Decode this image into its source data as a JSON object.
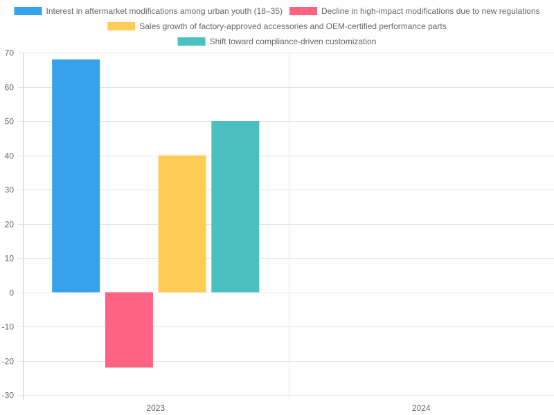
{
  "chart_data": {
    "type": "bar",
    "categories": [
      "2023",
      "2024"
    ],
    "series": [
      {
        "name": "Interest in aftermarket modifications among urban youth (18–35)",
        "values": [
          68,
          null
        ],
        "color": "#36a2eb"
      },
      {
        "name": "Decline in high-impact modifications due to new regulations",
        "values": [
          -22,
          null
        ],
        "color": "#ff6384"
      },
      {
        "name": "Sales growth of factory-approved accessories and OEM-certified performance parts",
        "values": [
          40,
          null
        ],
        "color": "#ffcd56"
      },
      {
        "name": "Shift toward compliance-driven customization",
        "values": [
          50,
          null
        ],
        "color": "#4bc0c0"
      }
    ],
    "ylim": [
      -30,
      70
    ],
    "yticks": [
      "70",
      "60",
      "50",
      "40",
      "30",
      "20",
      "10",
      "0",
      "-10",
      "-20",
      "-30"
    ],
    "grid": true,
    "legend_position": "top"
  }
}
